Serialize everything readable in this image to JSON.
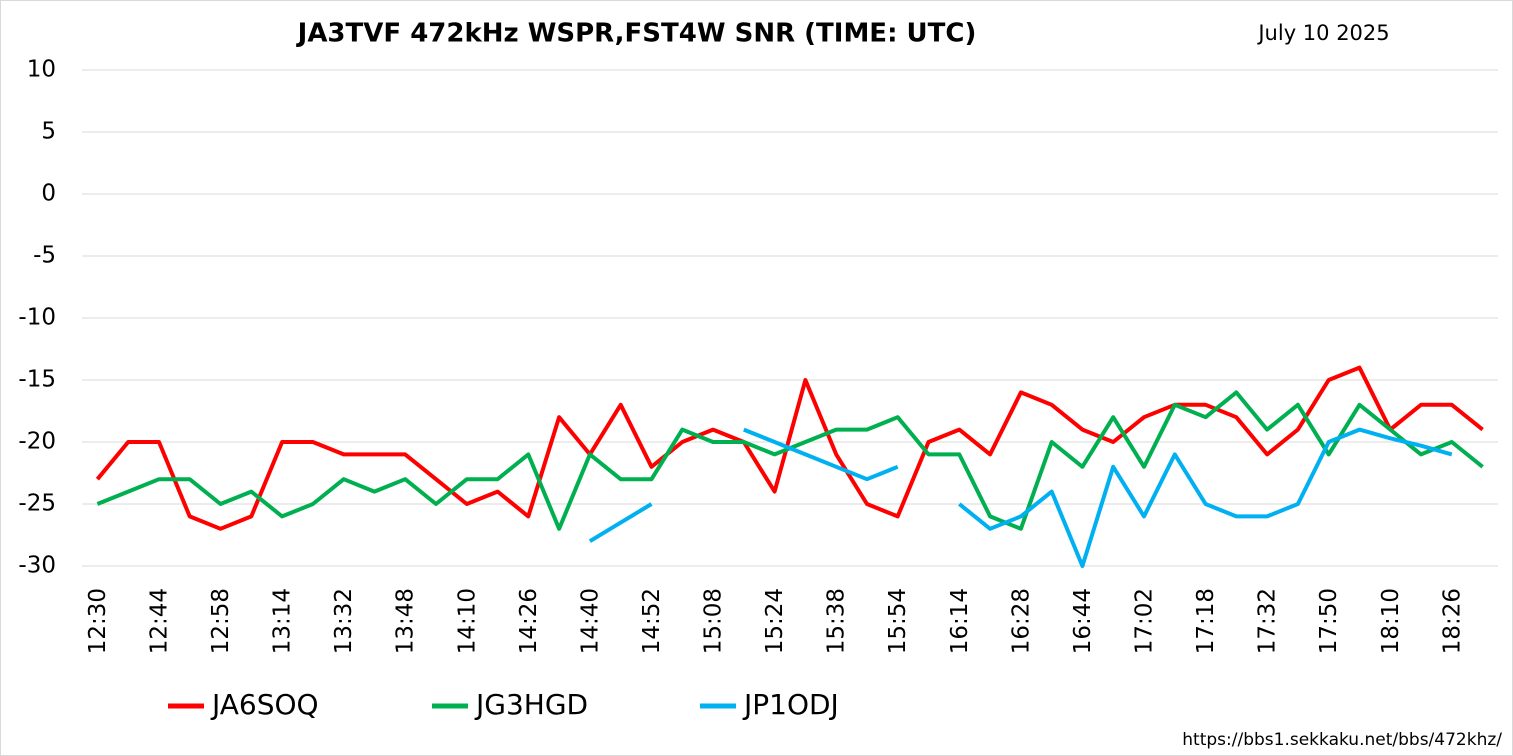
{
  "chart_data": {
    "type": "line",
    "title": "JA3TVF 472kHz WSPR,FST4W SNR (TIME: UTC)",
    "subtitle": "July 10 2025",
    "source": "https://bbs1.sekkaku.net/bbs/472khz/",
    "categories": [
      "12:30",
      null,
      "12:44",
      null,
      "12:58",
      null,
      "13:14",
      null,
      "13:32",
      null,
      "13:48",
      null,
      "14:10",
      null,
      "14:26",
      null,
      "14:40",
      null,
      "14:52",
      null,
      "15:08",
      null,
      "15:24",
      null,
      "15:38",
      null,
      "15:54",
      null,
      "16:14",
      null,
      "16:28",
      null,
      "16:44",
      null,
      "17:02",
      null,
      "17:18",
      null,
      "17:32",
      null,
      "17:50",
      null,
      "18:10",
      null,
      "18:26",
      null
    ],
    "series": [
      {
        "name": "JA6SOQ",
        "color": "#ff0000",
        "values": [
          -23,
          -20,
          -20,
          -26,
          -27,
          -26,
          -20,
          -20,
          -21,
          -21,
          -21,
          -23,
          -25,
          -24,
          -26,
          -18,
          -21,
          -17,
          -22,
          -20,
          -19,
          -20,
          -24,
          -15,
          -21,
          -25,
          -26,
          -20,
          -19,
          -21,
          -16,
          -17,
          -19,
          -20,
          -18,
          -17,
          -17,
          -18,
          -21,
          -19,
          -15,
          -14,
          -19,
          -17,
          -17,
          -19
        ]
      },
      {
        "name": "JG3HGD",
        "color": "#00b050",
        "values": [
          -25,
          -24,
          -23,
          -23,
          -25,
          -24,
          -26,
          -25,
          -23,
          -24,
          -23,
          -25,
          -23,
          -23,
          -21,
          -27,
          -21,
          -23,
          -23,
          -19,
          -20,
          -20,
          -21,
          -20,
          -19,
          -19,
          -18,
          -21,
          -21,
          -26,
          -27,
          -20,
          -22,
          -18,
          -22,
          -17,
          -18,
          -16,
          -19,
          -17,
          -21,
          -17,
          -19,
          -21,
          -20,
          -22
        ]
      },
      {
        "name": "JP1ODJ",
        "color": "#00b0f0",
        "values": [
          null,
          null,
          null,
          null,
          null,
          null,
          null,
          null,
          null,
          null,
          null,
          null,
          null,
          null,
          null,
          null,
          -28,
          -26.5,
          -25,
          null,
          null,
          -19,
          -20,
          -21,
          -22,
          -23,
          -22,
          null,
          -25,
          -27,
          -26,
          -24,
          -30,
          -22,
          -26,
          -21,
          -25,
          -26,
          -26,
          -25,
          -20,
          -19,
          -19.7,
          -20.3,
          -21,
          null
        ]
      }
    ],
    "ylim": [
      -30,
      10
    ],
    "yticks": [
      -30,
      -25,
      -20,
      -15,
      -10,
      -5,
      0,
      5,
      10
    ],
    "grid": true
  }
}
